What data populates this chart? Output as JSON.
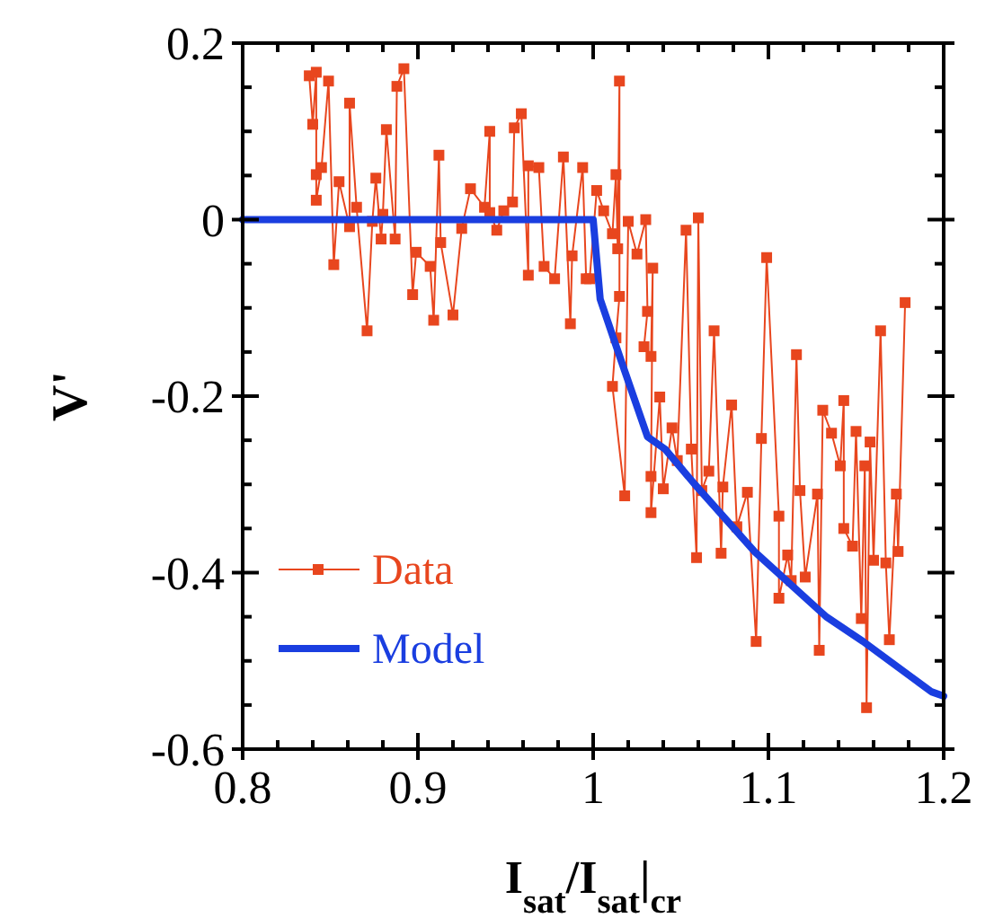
{
  "chart_data": {
    "type": "line",
    "xlabel": "I$_{sat}$/I$_{sat}$|$_{cr}$",
    "ylabel": "V'",
    "xlim": [
      0.8,
      1.2
    ],
    "ylim": [
      -0.6,
      0.2
    ],
    "xticks": [
      0.8,
      {
        "value": 0.82,
        "label": null
      },
      {
        "value": 0.84,
        "label": null
      },
      {
        "value": 0.86,
        "label": null
      },
      {
        "value": 0.88,
        "label": null
      },
      0.9,
      {
        "value": 0.92,
        "label": null
      },
      {
        "value": 0.94,
        "label": null
      },
      {
        "value": 0.96,
        "label": null
      },
      {
        "value": 0.98,
        "label": null
      },
      1,
      {
        "value": 1.02,
        "label": null
      },
      {
        "value": 1.04,
        "label": null
      },
      {
        "value": 1.06,
        "label": null
      },
      {
        "value": 1.08,
        "label": null
      },
      1.1,
      {
        "value": 1.12,
        "label": null
      },
      {
        "value": 1.14,
        "label": null
      },
      {
        "value": 1.16,
        "label": null
      },
      {
        "value": 1.18,
        "label": null
      },
      1.2
    ],
    "yticks": [
      -0.6,
      {
        "value": -0.55,
        "label": null
      },
      {
        "value": -0.5,
        "label": null
      },
      {
        "value": -0.45,
        "label": null
      },
      -0.4,
      {
        "value": -0.35,
        "label": null
      },
      {
        "value": -0.3,
        "label": null
      },
      {
        "value": -0.25,
        "label": null
      },
      -0.2,
      {
        "value": -0.15,
        "label": null
      },
      {
        "value": -0.1,
        "label": null
      },
      {
        "value": -0.05,
        "label": null
      },
      0,
      {
        "value": 0.05,
        "label": null
      },
      {
        "value": 0.1,
        "label": null
      },
      {
        "value": 0.15,
        "label": null
      },
      0.2
    ],
    "grid": false,
    "legend": "bottom left",
    "line_style": "solid",
    "series": [
      {
        "name": "Data",
        "color": "#e8461e",
        "marker": "square",
        "x": [
          0.838,
          0.84,
          0.842,
          0.842,
          0.842,
          0.845,
          0.849,
          0.852,
          0.855,
          0.861,
          0.861,
          0.865,
          0.871,
          0.874,
          0.876,
          0.879,
          0.88,
          0.882,
          0.887,
          0.888,
          0.892,
          0.897,
          0.899,
          0.907,
          0.909,
          0.912,
          0.913,
          0.92,
          0.925,
          0.93,
          0.938,
          0.941,
          0.941,
          0.945,
          0.949,
          0.954,
          0.955,
          0.959,
          0.963,
          0.963,
          0.969,
          0.972,
          0.978,
          0.983,
          0.987,
          0.988,
          0.994,
          0.996,
          0.998,
          1.002,
          1.006,
          1.011,
          1.013,
          1.014,
          1.015,
          1.015,
          1.013,
          1.011,
          1.018,
          1.02,
          1.025,
          1.03,
          1.031,
          1.029,
          1.033,
          1.034,
          1.033,
          1.033,
          1.038,
          1.04,
          1.045,
          1.048,
          1.053,
          1.056,
          1.059,
          1.06,
          1.062,
          1.066,
          1.069,
          1.073,
          1.074,
          1.079,
          1.082,
          1.088,
          1.093,
          1.096,
          1.099,
          1.106,
          1.106,
          1.111,
          1.113,
          1.116,
          1.118,
          1.121,
          1.128,
          1.129,
          1.131,
          1.136,
          1.141,
          1.143,
          1.143,
          1.148,
          1.15,
          1.153,
          1.155,
          1.156,
          1.158,
          1.16,
          1.164,
          1.167,
          1.169,
          1.173,
          1.174,
          1.178
        ],
        "values": [
          0.163,
          0.108,
          0.167,
          0.051,
          0.022,
          0.059,
          0.157,
          -0.051,
          0.043,
          -0.008,
          0.132,
          0.014,
          -0.126,
          -0.002,
          0.047,
          -0.022,
          0.006,
          0.102,
          -0.022,
          0.151,
          0.171,
          -0.085,
          -0.037,
          -0.053,
          -0.114,
          0.073,
          -0.026,
          -0.108,
          -0.01,
          0.035,
          0.014,
          0.1,
          0.008,
          -0.012,
          0.01,
          0.02,
          0.104,
          0.12,
          -0.063,
          0.061,
          0.059,
          -0.053,
          -0.067,
          0.071,
          -0.118,
          -0.041,
          0.059,
          -0.067,
          -0.067,
          0.033,
          0.01,
          -0.016,
          0.051,
          -0.033,
          0.157,
          -0.087,
          -0.134,
          -0.189,
          -0.313,
          -0.002,
          -0.039,
          0,
          -0.104,
          -0.144,
          -0.155,
          -0.055,
          -0.291,
          -0.332,
          -0.201,
          -0.305,
          -0.236,
          -0.273,
          -0.012,
          -0.26,
          -0.383,
          0.002,
          -0.307,
          -0.285,
          -0.126,
          -0.378,
          -0.303,
          -0.21,
          -0.348,
          -0.309,
          -0.478,
          -0.248,
          -0.043,
          -0.336,
          -0.429,
          -0.38,
          -0.409,
          -0.153,
          -0.307,
          -0.405,
          -0.311,
          -0.488,
          -0.216,
          -0.242,
          -0.279,
          -0.205,
          -0.35,
          -0.37,
          -0.24,
          -0.452,
          -0.279,
          -0.553,
          -0.252,
          -0.386,
          -0.126,
          -0.389,
          -0.476,
          -0.311,
          -0.376,
          -0.094
        ]
      },
      {
        "name": "Model",
        "color": "#1a3ee0",
        "marker": "none",
        "x": [
          0.8,
          1.0,
          1.004,
          1.016,
          1.031,
          1.041,
          1.058,
          1.092,
          1.133,
          1.154,
          1.193,
          1.2
        ],
        "values": [
          0,
          0,
          -0.09,
          -0.16,
          -0.246,
          -0.26,
          -0.3,
          -0.376,
          -0.45,
          -0.478,
          -0.535,
          -0.54
        ]
      }
    ]
  }
}
